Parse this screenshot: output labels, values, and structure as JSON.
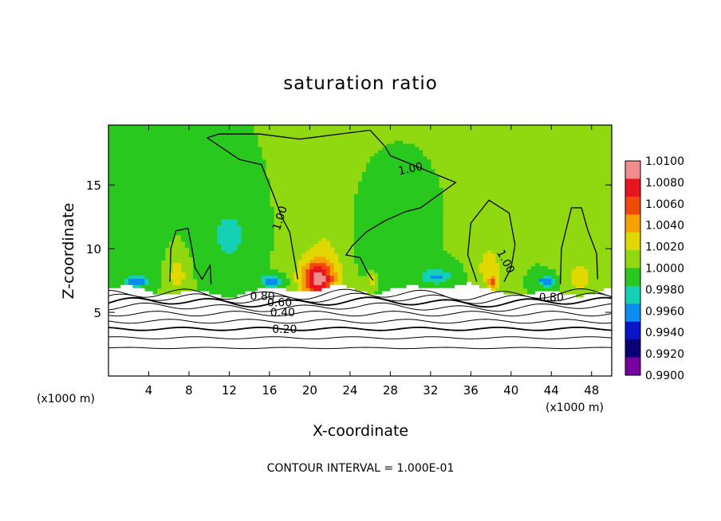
{
  "chart_data": {
    "type": "heatmap",
    "title": "saturation ratio",
    "xlabel": "X-coordinate",
    "ylabel": "Z-coordinate",
    "x_unit_label": "(x1000 m)",
    "x_ticks": [
      4,
      8,
      12,
      16,
      20,
      24,
      28,
      32,
      36,
      40,
      44,
      48
    ],
    "y_ticks": [
      5,
      10,
      15
    ],
    "xlim": [
      0,
      50
    ],
    "ylim": [
      0,
      19.7
    ],
    "footer": "CONTOUR INTERVAL = 1.000E-01",
    "colorbar": {
      "labels": [
        "1.0100",
        "1.0080",
        "1.0060",
        "1.0040",
        "1.0020",
        "1.0000",
        "0.9980",
        "0.9960",
        "0.9940",
        "0.9920",
        "0.9900"
      ],
      "colors": [
        "#f08c8c",
        "#e8141e",
        "#f04a0a",
        "#f8a000",
        "#e0d800",
        "#90d810",
        "#28c81e",
        "#14d0b4",
        "#0a8cf0",
        "#0a14c8",
        "#0a0078",
        "#7800a0"
      ]
    },
    "contour_labels": [
      {
        "text": "1.00",
        "x": 17,
        "y": 12.4,
        "rot": 72
      },
      {
        "text": "1.00",
        "x": 30,
        "y": 16.3,
        "rot": 12
      },
      {
        "text": "1.00",
        "x": 39.5,
        "y": 9.0,
        "rot": -62
      },
      {
        "text": "0.80",
        "x": 15.3,
        "y": 6.3,
        "rot": 0
      },
      {
        "text": "0.60",
        "x": 17.0,
        "y": 5.8,
        "rot": 0
      },
      {
        "text": "0.40",
        "x": 17.3,
        "y": 5.0,
        "rot": 0
      },
      {
        "text": "0.20",
        "x": 17.5,
        "y": 3.7,
        "rot": 0
      },
      {
        "text": "0.80",
        "x": 44.0,
        "y": 6.2,
        "rot": 0
      }
    ],
    "field_peaks": [
      {
        "x": 20.8,
        "z": 7.6,
        "value": 1.01,
        "sx": 1.6,
        "sz": 1.4
      },
      {
        "x": 21.5,
        "z": 10,
        "value": 1.002,
        "sx": 3.2,
        "sz": 5
      },
      {
        "x": 6.8,
        "z": 8.0,
        "value": 1.003,
        "sx": 1.0,
        "sz": 1.5
      },
      {
        "x": 37.8,
        "z": 8.5,
        "value": 1.003,
        "sx": 1.3,
        "sz": 2
      },
      {
        "x": 46.8,
        "z": 7.8,
        "value": 1.003,
        "sx": 1.2,
        "sz": 1.5
      },
      {
        "x": 26.2,
        "z": 7.6,
        "value": 1.0035,
        "sx": 0.5,
        "sz": 0.6
      },
      {
        "x": 38.2,
        "z": 7.3,
        "value": 1.006,
        "sx": 0.4,
        "sz": 0.4
      },
      {
        "x": 2.8,
        "z": 7.4,
        "value": 0.9945,
        "sx": 1.2,
        "sz": 0.4
      },
      {
        "x": 16.2,
        "z": 7.4,
        "value": 0.995,
        "sx": 1.2,
        "sz": 0.5
      },
      {
        "x": 32.5,
        "z": 7.8,
        "value": 0.9955,
        "sx": 1.6,
        "sz": 0.6
      },
      {
        "x": 43.5,
        "z": 7.4,
        "value": 0.9935,
        "sx": 0.8,
        "sz": 0.4
      },
      {
        "x": 12,
        "z": 11,
        "value": 0.9975,
        "sx": 2.5,
        "sz": 3
      },
      {
        "x": 26,
        "z": 11,
        "value": 0.998,
        "sx": 2.0,
        "sz": 3
      },
      {
        "x": 3,
        "z": 10,
        "value": 0.998,
        "sx": 1.8,
        "sz": 2
      }
    ]
  }
}
